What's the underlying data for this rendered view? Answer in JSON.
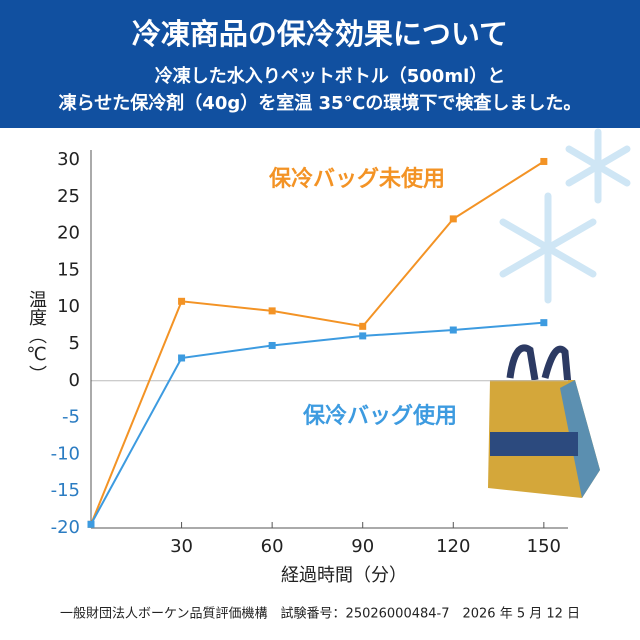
{
  "header": {
    "title": "冷凍商品の保冷効果について",
    "subtitle_lines": [
      "冷凍した水入りペットボトル（500ml）と",
      "凍らせた保冷剤（40g）を室温 35℃の環境下で検査しました。"
    ]
  },
  "chart_data": {
    "type": "line",
    "x": [
      0,
      30,
      60,
      90,
      120,
      150
    ],
    "series": [
      {
        "name": "保冷バッグ未使用",
        "color": "#f39325",
        "values": [
          -19.5,
          10.8,
          9.5,
          7.4,
          22,
          29.8
        ]
      },
      {
        "name": "保冷バッグ使用",
        "color": "#3d9be0",
        "values": [
          -19.5,
          3.1,
          4.8,
          6.1,
          6.9,
          7.9
        ]
      }
    ],
    "xlim": [
      0,
      158
    ],
    "xticks": [
      30,
      60,
      90,
      120,
      150
    ],
    "ylim": [
      -20,
      30
    ],
    "yticks": [
      30,
      25,
      20,
      15,
      10,
      5,
      0,
      -5,
      -10,
      -15,
      -20
    ],
    "negative_tick_color": "#2b7cc2",
    "zero_line": true,
    "xlabel": "経過時間（分）",
    "ylabel": "温度（℃）"
  },
  "footer": "一般財団法人ボーケン品質評価機構　試験番号：25026000484-7　2026 年 5 月 12 日"
}
